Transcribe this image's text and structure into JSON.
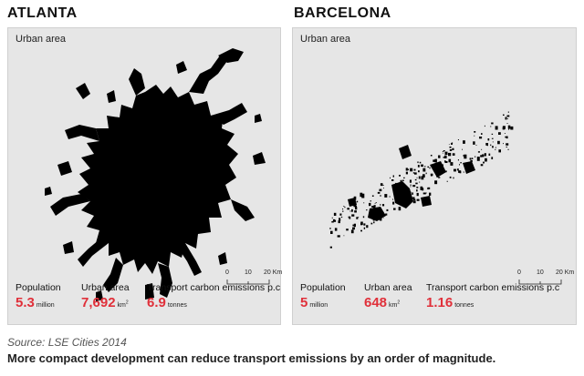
{
  "atlanta": {
    "title": "ATLANTA",
    "panel_label": "Urban area",
    "scale": {
      "zero": "0",
      "mid": "10",
      "end": "20 Km"
    },
    "population": {
      "label": "Population",
      "value": "5.3",
      "unit": "million"
    },
    "urban_area": {
      "label": "Urban area",
      "value": "7,692",
      "unit": "km",
      "unit_sup": "2"
    },
    "emissions": {
      "label": "Transport carbon emissions p.c",
      "value": "6.9",
      "unit": "tonnes"
    }
  },
  "barcelona": {
    "title": "BARCELONA",
    "panel_label": "Urban area",
    "scale": {
      "zero": "0",
      "mid": "10",
      "end": "20 Km"
    },
    "population": {
      "label": "Population",
      "value": "5",
      "unit": "million"
    },
    "urban_area": {
      "label": "Urban area",
      "value": "648",
      "unit": "km",
      "unit_sup": "2"
    },
    "emissions": {
      "label": "Transport carbon emissions p.c",
      "value": "1.16",
      "unit": "tonnes"
    }
  },
  "source": "Source: LSE Cities 2014",
  "caption": "More compact development can reduce transport emissions by an order of magnitude.",
  "colors": {
    "accent": "#e0303a",
    "urban": "#000000",
    "panel": "#e6e6e6"
  }
}
